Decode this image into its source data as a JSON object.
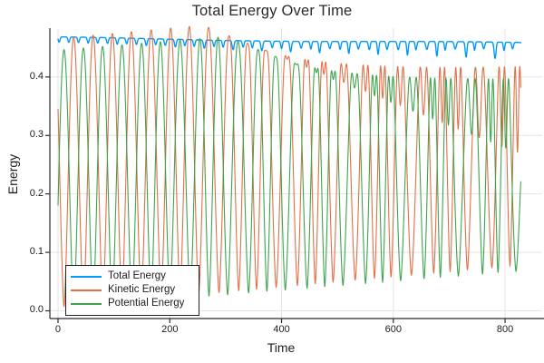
{
  "chart_data": {
    "type": "line",
    "title": "Total Energy Over Time",
    "xlabel": "Time",
    "ylabel": "Energy",
    "xlim": [
      -14.6,
      866.4
    ],
    "ylim": [
      -0.0132,
      0.4836
    ],
    "xticks": [
      0,
      200,
      400,
      600,
      800
    ],
    "xtick_labels": [
      "0",
      "200",
      "400",
      "600",
      "800"
    ],
    "yticks": [
      0.0,
      0.1,
      0.2,
      0.3,
      0.4
    ],
    "ytick_labels": [
      "0.0",
      "0.1",
      "0.2",
      "0.3",
      "0.4"
    ],
    "grid": true,
    "legend_position": "bottom-left",
    "t_samples": {
      "start": 0,
      "end": 828,
      "step": 0.4
    },
    "colors": {
      "grid": "#e4e4e4",
      "axis": "#2a2a2a",
      "text": "#202020",
      "background": "#ffffff"
    },
    "series": [
      {
        "name": "Total Energy",
        "color": "#009af9",
        "stroke_width": 1.4,
        "summary_points": [
          [
            0,
            0.468
          ],
          [
            200,
            0.4655
          ],
          [
            400,
            0.4635
          ],
          [
            600,
            0.46
          ],
          [
            828,
            0.456
          ]
        ],
        "description": "Nearly constant ~0.467, slow decay to ~0.456 with small periodic dips (period ~17) deepening and growing ragged over time",
        "model": {
          "kind": "decay_dips",
          "base_start": 0.4672,
          "base_end": 0.4578,
          "curve": 0.0015,
          "dip_start": 0.009,
          "dip_end": 0.019,
          "dip_period": 17.3,
          "dip_phase_t": 36.6,
          "dip_sharpness": 6,
          "ragged_amp": 0.55,
          "ragged_period": 8.3
        }
      },
      {
        "name": "Kinetic Energy",
        "color": "#e26f46",
        "stroke_width": 1.1,
        "summary_points": [
          [
            28,
            0.466
          ],
          [
            200,
            0.46
          ],
          [
            400,
            0.45
          ],
          [
            600,
            0.43
          ],
          [
            828,
            0.42
          ]
        ],
        "envelope_min": [
          [
            10,
            0.006
          ],
          [
            400,
            0.04
          ],
          [
            828,
            0.078
          ]
        ],
        "description": "Oscillates between ~0.01 and ~0.466 with period ~34.6, antiphase to potential energy; peaks develop double humps and phase jitter after t~300, minima rise to ~0.08",
        "model": {
          "kind": "oscillation",
          "period": 34.6,
          "peak_t": 28,
          "lo_start": 0.006,
          "lo_end": 0.078,
          "amp": 0.46,
          "peak_sharp": 0.8,
          "notch_max": 0.58,
          "notch_power": 8,
          "notch_start_t": 260,
          "notch_ramp": 560,
          "jitter_amp": 1.05,
          "jitter_period": 19.0,
          "jitter_phase": 1.0,
          "jitter_pow": 1.35
        }
      },
      {
        "name": "Potential Energy",
        "color": "#3da44e",
        "stroke_width": 1.1,
        "summary_points": [
          [
            10.7,
            0.446
          ],
          [
            200,
            0.44
          ],
          [
            400,
            0.43
          ],
          [
            600,
            0.42
          ],
          [
            828,
            0.41
          ]
        ],
        "envelope_min": [
          [
            28,
            0.004
          ],
          [
            400,
            0.038
          ],
          [
            828,
            0.068
          ]
        ],
        "description": "Mirror of kinetic energy: oscillates ~0.005 to ~0.446, period ~34.6, offset half period; same chaotic double-hump behaviour late",
        "model": {
          "kind": "oscillation",
          "period": 34.6,
          "peak_t": 10.7,
          "lo_start": 0.004,
          "lo_end": 0.068,
          "amp": 0.442,
          "peak_sharp": 0.8,
          "notch_max": 0.58,
          "notch_power": 8,
          "notch_start_t": 300,
          "notch_ramp": 560,
          "jitter_amp": 1.05,
          "jitter_period": 16.3,
          "jitter_phase": 2.3,
          "jitter_pow": 1.35
        }
      }
    ]
  }
}
